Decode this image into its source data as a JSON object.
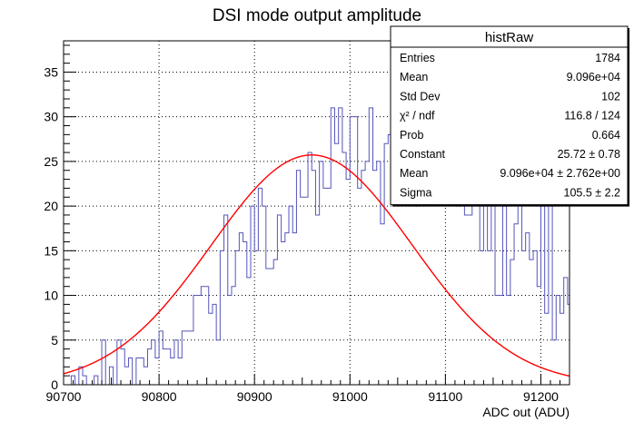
{
  "chart_data": {
    "type": "histogram",
    "title": "DSI mode output amplitude",
    "xlabel": "ADC out (ADU)",
    "ylabel": "",
    "xlim": [
      90700,
      91230
    ],
    "ylim": [
      0,
      38.5
    ],
    "grid": true,
    "x_ticks": [
      90700,
      90800,
      90900,
      91000,
      91100,
      91200
    ],
    "y_ticks": [
      0,
      5,
      10,
      15,
      20,
      25,
      30,
      35
    ],
    "bin_width": 4,
    "bin_start": 90700,
    "values": [
      0,
      0,
      1,
      0,
      2,
      1,
      0,
      0,
      1,
      0,
      5,
      0,
      2,
      0,
      5,
      4,
      2,
      3,
      0,
      3,
      3,
      2,
      4,
      5,
      3,
      6,
      4,
      4,
      3,
      5,
      3,
      6,
      6,
      6,
      10,
      10,
      11,
      11,
      8,
      9,
      5,
      15,
      19,
      10,
      11,
      15,
      17,
      16,
      12,
      20,
      15,
      22,
      20,
      13,
      13,
      14,
      19,
      16,
      17,
      20,
      17,
      24,
      21,
      21,
      26,
      24,
      19,
      25,
      22,
      22,
      31,
      27,
      31,
      26,
      23,
      30,
      30,
      22,
      24,
      25,
      31,
      24,
      25,
      18,
      27,
      28,
      25,
      26,
      24,
      22,
      23,
      21,
      20,
      37,
      27,
      22,
      26,
      23,
      27,
      28,
      21,
      21,
      30,
      20,
      22,
      19,
      19,
      26,
      24,
      15,
      24,
      15,
      22,
      10,
      10,
      20,
      10,
      14,
      18,
      21,
      15,
      17,
      14,
      15,
      11,
      20,
      8,
      21,
      5,
      10,
      8,
      12,
      9,
      6,
      6,
      6,
      4,
      2,
      8,
      5,
      7,
      7,
      7,
      2,
      3,
      3,
      6,
      3,
      1,
      2,
      3,
      3,
      3,
      2,
      1,
      0,
      0,
      0,
      1,
      0
    ],
    "series": [
      {
        "name": "histRaw",
        "color": "#5555bb"
      },
      {
        "name": "fit",
        "color": "#ff0000",
        "constant": 25.72,
        "mean": 90960,
        "sigma": 105.5
      }
    ],
    "stats_box": {
      "title": "histRaw",
      "rows": [
        {
          "label": "Entries",
          "value": "1784"
        },
        {
          "label": "Mean",
          "value": "9.096e+04"
        },
        {
          "label": "Std Dev",
          "value": "102"
        },
        {
          "label": "χ² / ndf",
          "value": "116.8 / 124"
        },
        {
          "label": "Prob",
          "value": "0.664"
        },
        {
          "label": "Constant",
          "value": "25.72 ± 0.78"
        },
        {
          "label": "Mean",
          "value": "9.096e+04 ± 2.762e+00"
        },
        {
          "label": "Sigma",
          "value": "105.5 ± 2.2"
        }
      ]
    }
  }
}
